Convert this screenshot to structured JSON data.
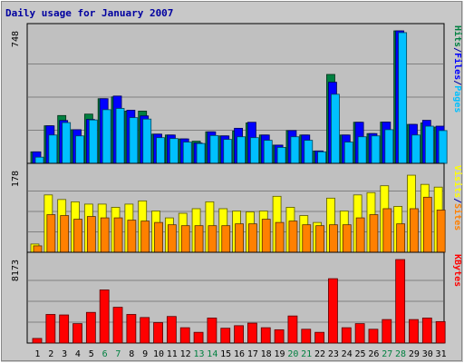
{
  "chart_data": {
    "type": "bar",
    "title": "Daily usage for January 2007",
    "categories": [
      "1",
      "2",
      "3",
      "4",
      "5",
      "6",
      "7",
      "8",
      "9",
      "10",
      "11",
      "12",
      "13",
      "14",
      "15",
      "16",
      "17",
      "18",
      "19",
      "20",
      "21",
      "22",
      "23",
      "24",
      "25",
      "26",
      "27",
      "28",
      "29",
      "30",
      "31"
    ],
    "weekend_days": [
      "6",
      "7",
      "13",
      "14",
      "20",
      "21",
      "27",
      "28"
    ],
    "panels": [
      {
        "name": "hits-files-pages",
        "ymax_label": "748",
        "ymax": 748,
        "legend": [
          {
            "text": "Pages",
            "color": "#00c0ff"
          },
          {
            "text": "/",
            "color": "#0000a0"
          },
          {
            "text": "Files",
            "color": "#0000ff"
          },
          {
            "text": "/",
            "color": "#0000a0"
          },
          {
            "text": "Hits",
            "color": "#008040"
          }
        ],
        "series": [
          {
            "name": "Hits",
            "color": "#008040",
            "values": [
              65,
              212,
              270,
              190,
              278,
              365,
              375,
              295,
              295,
              165,
              160,
              138,
              125,
              178,
              155,
              182,
              228,
              160,
              103,
              185,
              160,
              70,
              502,
              160,
              232,
              168,
              233,
              748,
              220,
              228,
              205
            ]
          },
          {
            "name": "Files",
            "color": "#0000ff",
            "values": [
              65,
              212,
              242,
              190,
              248,
              365,
              380,
              300,
              268,
              165,
              160,
              138,
              115,
              178,
              155,
              198,
              232,
              160,
              103,
              185,
              160,
              70,
              458,
              160,
              232,
              168,
              233,
              748,
              220,
              243,
              210
            ]
          },
          {
            "name": "Pages",
            "color": "#00c0ff",
            "values": [
              35,
              160,
              230,
              155,
              245,
              303,
              310,
              258,
              250,
              145,
              140,
              120,
              112,
              157,
              135,
              150,
              145,
              130,
              90,
              150,
              130,
              65,
              390,
              120,
              150,
              155,
              190,
              738,
              160,
              210,
              185
            ]
          }
        ]
      },
      {
        "name": "visits-sites",
        "ymax_label": "178",
        "ymax": 178,
        "legend": [
          {
            "text": "Sites",
            "color": "#ff8000"
          },
          {
            "text": "/",
            "color": "#0000a0"
          },
          {
            "text": "Visits",
            "color": "#ffff00"
          }
        ],
        "series": [
          {
            "name": "Visits",
            "color": "#ffff00",
            "values": [
              18,
              125,
              115,
              110,
              105,
              105,
              98,
              105,
              112,
              90,
              75,
              85,
              95,
              110,
              95,
              90,
              88,
              90,
              122,
              98,
              80,
              65,
              118,
              90,
              125,
              130,
              145,
              100,
              168,
              148,
              142
            ]
          },
          {
            "name": "Sites",
            "color": "#ff8000",
            "values": [
              14,
              82,
              80,
              72,
              78,
              75,
              75,
              70,
              68,
              65,
              60,
              58,
              58,
              58,
              58,
              62,
              62,
              72,
              65,
              68,
              60,
              58,
              60,
              60,
              75,
              82,
              95,
              62,
              95,
              120,
              92
            ]
          }
        ]
      },
      {
        "name": "kbytes",
        "ymax_label": "8173",
        "ymax": 8173,
        "legend": [
          {
            "text": "KBytes",
            "color": "#ff0000"
          }
        ],
        "series": [
          {
            "name": "KBytes",
            "color": "#ff0000",
            "values": [
              450,
              2800,
              2750,
              1900,
              3000,
              5200,
              3500,
              2800,
              2500,
              2000,
              2600,
              1500,
              1050,
              2450,
              1450,
              1700,
              1950,
              1500,
              1300,
              2650,
              1350,
              1050,
              6300,
              1500,
              1900,
              1350,
              2300,
              8173,
              2300,
              2450,
              2100
            ]
          }
        ]
      }
    ]
  }
}
